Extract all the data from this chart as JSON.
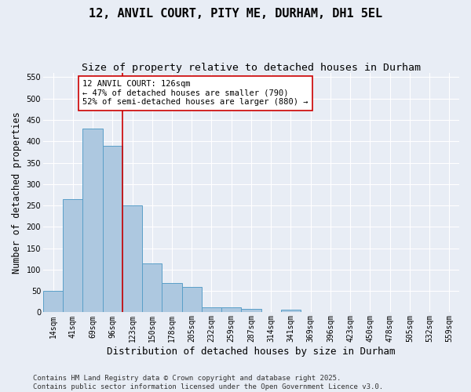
{
  "title": "12, ANVIL COURT, PITY ME, DURHAM, DH1 5EL",
  "subtitle": "Size of property relative to detached houses in Durham",
  "xlabel": "Distribution of detached houses by size in Durham",
  "ylabel": "Number of detached properties",
  "categories": [
    "14sqm",
    "41sqm",
    "69sqm",
    "96sqm",
    "123sqm",
    "150sqm",
    "178sqm",
    "205sqm",
    "232sqm",
    "259sqm",
    "287sqm",
    "314sqm",
    "341sqm",
    "369sqm",
    "396sqm",
    "423sqm",
    "450sqm",
    "478sqm",
    "505sqm",
    "532sqm",
    "559sqm"
  ],
  "values": [
    50,
    265,
    430,
    390,
    250,
    115,
    68,
    60,
    12,
    12,
    9,
    0,
    7,
    0,
    0,
    0,
    0,
    0,
    0,
    0,
    0
  ],
  "bar_color": "#adc8e0",
  "bar_edge_color": "#5a9fc8",
  "bg_color": "#e8edf5",
  "grid_color": "#ffffff",
  "vline_x_index": 4,
  "vline_color": "#cc0000",
  "annotation_text": "12 ANVIL COURT: 126sqm\n← 47% of detached houses are smaller (790)\n52% of semi-detached houses are larger (880) →",
  "annotation_box_color": "#ffffff",
  "annotation_box_edge": "#cc0000",
  "ylim": [
    0,
    560
  ],
  "yticks": [
    0,
    50,
    100,
    150,
    200,
    250,
    300,
    350,
    400,
    450,
    500,
    550
  ],
  "footer": "Contains HM Land Registry data © Crown copyright and database right 2025.\nContains public sector information licensed under the Open Government Licence v3.0.",
  "title_fontsize": 11,
  "subtitle_fontsize": 9.5,
  "xlabel_fontsize": 9,
  "ylabel_fontsize": 8.5,
  "tick_fontsize": 7,
  "annotation_fontsize": 7.5,
  "footer_fontsize": 6.5
}
